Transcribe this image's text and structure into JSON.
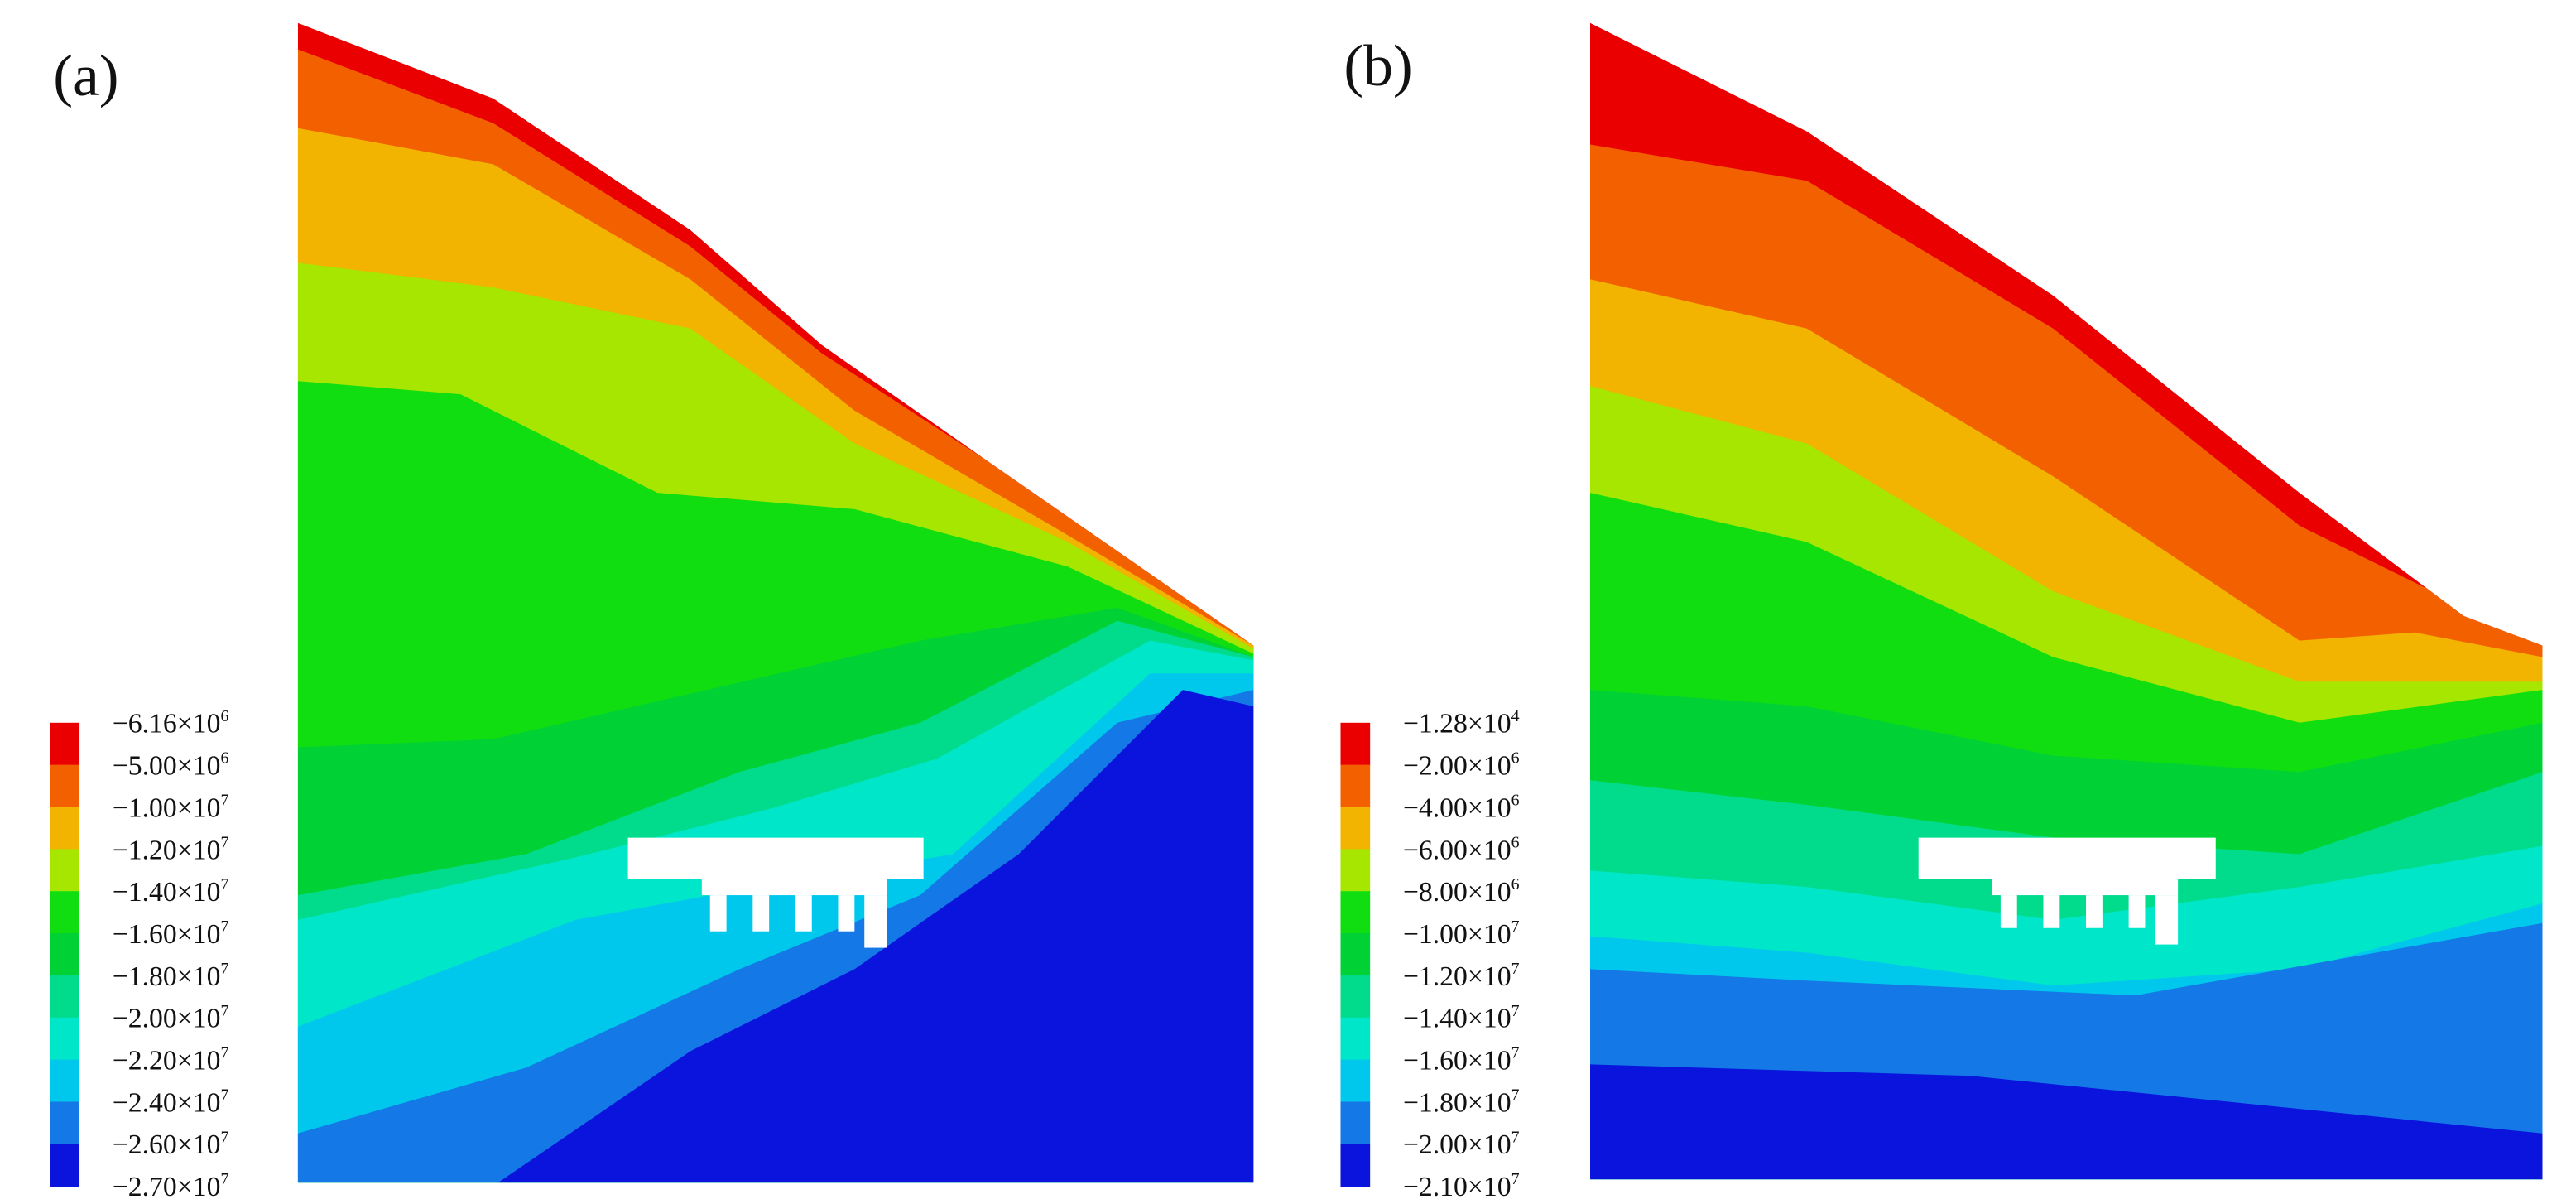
{
  "panels": [
    {
      "label": "(a)",
      "legend": {
        "colors": [
          "#ea0000",
          "#f26000",
          "#f2b400",
          "#a6e600",
          "#10de10",
          "#00d236",
          "#00dc8c",
          "#00e6c8",
          "#00c8ec",
          "#1478e6",
          "#0a14dc"
        ],
        "labels": [
          {
            "base": "−6.16×10",
            "exp": "6"
          },
          {
            "base": "−5.00×10",
            "exp": "6"
          },
          {
            "base": "−1.00×10",
            "exp": "7"
          },
          {
            "base": "−1.20×10",
            "exp": "7"
          },
          {
            "base": "−1.40×10",
            "exp": "7"
          },
          {
            "base": "−1.60×10",
            "exp": "7"
          },
          {
            "base": "−1.80×10",
            "exp": "7"
          },
          {
            "base": "−2.00×10",
            "exp": "7"
          },
          {
            "base": "−2.20×10",
            "exp": "7"
          },
          {
            "base": "−2.40×10",
            "exp": "7"
          },
          {
            "base": "−2.60×10",
            "exp": "7"
          },
          {
            "base": "−2.70×10",
            "exp": "7"
          }
        ]
      }
    },
    {
      "label": "(b)",
      "legend": {
        "colors": [
          "#ea0000",
          "#f26000",
          "#f2b400",
          "#a6e600",
          "#10de10",
          "#00d236",
          "#00dc8c",
          "#00e6c8",
          "#00c8ec",
          "#1478e6",
          "#0a14dc"
        ],
        "labels": [
          {
            "base": "−1.28×10",
            "exp": "4"
          },
          {
            "base": "−2.00×10",
            "exp": "6"
          },
          {
            "base": "−4.00×10",
            "exp": "6"
          },
          {
            "base": "−6.00×10",
            "exp": "6"
          },
          {
            "base": "−8.00×10",
            "exp": "6"
          },
          {
            "base": "−1.00×10",
            "exp": "7"
          },
          {
            "base": "−1.20×10",
            "exp": "7"
          },
          {
            "base": "−1.40×10",
            "exp": "7"
          },
          {
            "base": "−1.60×10",
            "exp": "7"
          },
          {
            "base": "−1.80×10",
            "exp": "7"
          },
          {
            "base": "−2.00×10",
            "exp": "7"
          },
          {
            "base": "−2.10×10",
            "exp": "7"
          }
        ]
      }
    }
  ]
}
